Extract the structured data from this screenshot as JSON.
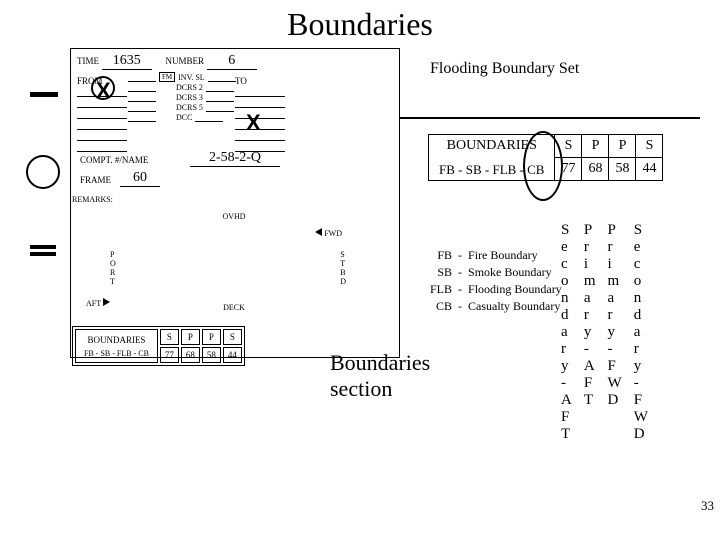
{
  "title": "Boundaries",
  "time_label": "TIME",
  "time_value": "1635",
  "number_label": "NUMBER",
  "number_value": "6",
  "from_label": "FROM",
  "to_label": "TO",
  "fm_label": "FM",
  "mid_lines": [
    "INV. SL",
    "DCRS 2",
    "DCRS 3",
    "DCRS 5",
    "DCC"
  ],
  "x1": "X",
  "x2": "X",
  "compt_label": "COMPT. #/NAME",
  "compt_value": "2-58-2-Q",
  "frame_label": "FRAME",
  "frame_value": "60",
  "remarks_label": "REMARKS:",
  "ovhd": "OVHD",
  "fwd": "FWD",
  "port": [
    "P",
    "O",
    "R",
    "T"
  ],
  "stbd": [
    "S",
    "T",
    "B",
    "D"
  ],
  "aft": "AFT",
  "deck": "DECK",
  "btable_header": "BOUNDARIES",
  "btable_sub": "FB - SB - FLB - CB",
  "btable_cols": [
    "S",
    "P",
    "P",
    "S"
  ],
  "btable_vals": [
    "77",
    "68",
    "58",
    "44"
  ],
  "r_heading": "Flooding Boundary Set",
  "r_boundaries": "BOUNDARIES",
  "r_formula": "FB - SB - FLB - CB",
  "rtable_cols": [
    "S",
    "P",
    "P",
    "S"
  ],
  "rtable_vals": [
    "77",
    "68",
    "58",
    "44"
  ],
  "legend_rows": [
    [
      "FB",
      "-",
      "Fire Boundary"
    ],
    [
      "SB",
      "-",
      "Smoke Boundary"
    ],
    [
      "FLB",
      "-",
      "Flooding Boundary"
    ],
    [
      "CB",
      "-",
      "Casualty Boundary"
    ]
  ],
  "vcol1": [
    "S",
    "e",
    "c",
    "o",
    "n",
    "d",
    "a",
    "r",
    "y",
    "-",
    "A",
    "F",
    "T"
  ],
  "vcol2": [
    "P",
    "r",
    "i",
    "m",
    "a",
    "r",
    "y",
    "-",
    "A",
    "F",
    "T"
  ],
  "vcol3": [
    "P",
    "r",
    "i",
    "m",
    "a",
    "r",
    "y",
    "-",
    "F",
    "W",
    "D"
  ],
  "vcol4": [
    "S",
    "e",
    "c",
    "o",
    "n",
    "d",
    "a",
    "r",
    "y",
    "-",
    "F",
    "W",
    "D"
  ],
  "bsec": "Boundaries section",
  "page": "33"
}
